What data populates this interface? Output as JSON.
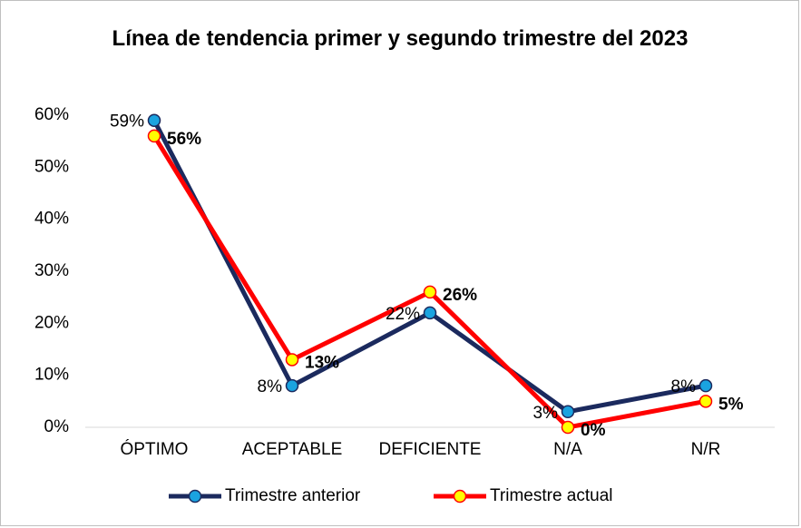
{
  "chart_data": {
    "type": "line",
    "title": "Línea de tendencia primer y segundo trimestre del 2023",
    "categories": [
      "ÓPTIMO",
      "ACEPTABLE",
      "DEFICIENTE",
      "N/A",
      "N/R"
    ],
    "series": [
      {
        "name": "Trimestre anterior",
        "color": "#1b2a5e",
        "marker_color": "#1aa3e0",
        "values": [
          59,
          8,
          22,
          3,
          8
        ],
        "value_labels": [
          "59%",
          "8%",
          "22%",
          "3%",
          "8%"
        ]
      },
      {
        "name": "Trimestre actual",
        "color": "#ff0000",
        "marker_color": "#ffff00",
        "values": [
          56,
          13,
          26,
          0,
          5
        ],
        "value_labels": [
          "56%",
          "13%",
          "26%",
          "0%",
          "5%"
        ]
      }
    ],
    "ylim": [
      0,
      60
    ],
    "yticks": [
      {
        "value": 0,
        "label": "0%"
      },
      {
        "value": 10,
        "label": "10%"
      },
      {
        "value": 20,
        "label": "20%"
      },
      {
        "value": 30,
        "label": "30%"
      },
      {
        "value": 40,
        "label": "40%"
      },
      {
        "value": 50,
        "label": "50%"
      },
      {
        "value": 60,
        "label": "60%"
      }
    ],
    "grid": false,
    "legend": "bottom"
  }
}
